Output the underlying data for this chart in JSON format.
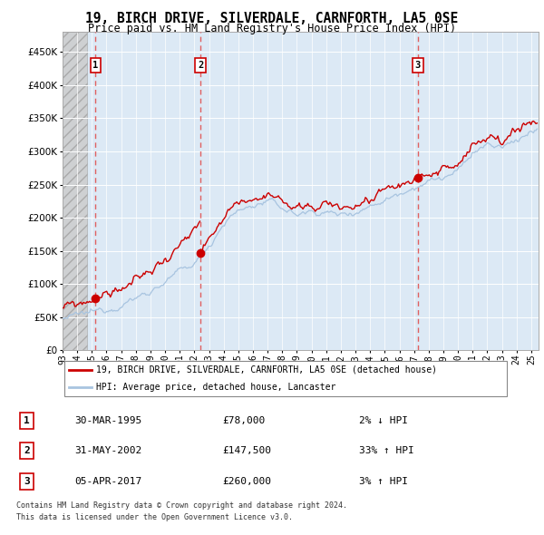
{
  "title": "19, BIRCH DRIVE, SILVERDALE, CARNFORTH, LA5 0SE",
  "subtitle": "Price paid vs. HM Land Registry's House Price Index (HPI)",
  "hpi_label": "HPI: Average price, detached house, Lancaster",
  "property_label": "19, BIRCH DRIVE, SILVERDALE, CARNFORTH, LA5 0SE (detached house)",
  "footer_line1": "Contains HM Land Registry data © Crown copyright and database right 2024.",
  "footer_line2": "This data is licensed under the Open Government Licence v3.0.",
  "sales": [
    {
      "num": 1,
      "date": "30-MAR-1995",
      "price": 78000,
      "pct": "2%",
      "dir": "↓",
      "x_year": 1995.25
    },
    {
      "num": 2,
      "date": "31-MAY-2002",
      "price": 147500,
      "pct": "33%",
      "dir": "↑",
      "x_year": 2002.42
    },
    {
      "num": 3,
      "date": "05-APR-2017",
      "price": 260000,
      "pct": "3%",
      "dir": "↑",
      "x_year": 2017.26
    }
  ],
  "hpi_color": "#a8c4e0",
  "property_color": "#cc0000",
  "sale_dot_color": "#cc0000",
  "dashed_line_color": "#e06060",
  "plot_bg_color": "#dce9f5",
  "grid_color": "#ffffff",
  "ylim": [
    0,
    480000
  ],
  "yticks": [
    0,
    50000,
    100000,
    150000,
    200000,
    250000,
    300000,
    350000,
    400000,
    450000
  ],
  "xlim_start": 1993.0,
  "xlim_end": 2025.5,
  "hatch_end": 1994.7
}
